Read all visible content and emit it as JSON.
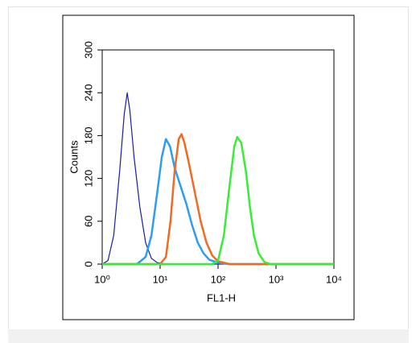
{
  "chart_data": {
    "type": "line",
    "xlabel": "FL1-H",
    "ylabel": "Counts",
    "xscale": "log",
    "xlim": [
      1,
      10000
    ],
    "xticks": [
      {
        "value": 1,
        "label": "10⁰"
      },
      {
        "value": 10,
        "label": "10¹"
      },
      {
        "value": 100,
        "label": "10²"
      },
      {
        "value": 1000,
        "label": "10³"
      },
      {
        "value": 10000,
        "label": "10⁴"
      }
    ],
    "ylim": [
      0,
      300
    ],
    "yticks": [
      0,
      60,
      120,
      180,
      240,
      300
    ],
    "series": [
      {
        "color": "#1c1c9e",
        "width": 1.2,
        "x": [
          1,
          1.26,
          1.58,
          2.0,
          2.4,
          2.7,
          3.0,
          3.55,
          4.47,
          5.62,
          7.08,
          8.91,
          12.6,
          10000
        ],
        "values": [
          0,
          5,
          40,
          130,
          210,
          240,
          215,
          150,
          80,
          30,
          8,
          2,
          0,
          0
        ]
      },
      {
        "color": "#2b9df2",
        "width": 2.5,
        "x": [
          1,
          3.98,
          5.62,
          7.08,
          8.91,
          10.7,
          12.6,
          14.8,
          17.8,
          22.4,
          28.2,
          35.5,
          44.7,
          56.2,
          70.8,
          100,
          158,
          10000
        ],
        "values": [
          0,
          0,
          10,
          40,
          100,
          150,
          175,
          165,
          135,
          110,
          85,
          55,
          30,
          15,
          6,
          2,
          0,
          0
        ]
      },
      {
        "color": "#f26a22",
        "width": 2.5,
        "x": [
          1,
          10,
          12.6,
          15.1,
          17.8,
          20.9,
          23.4,
          26.3,
          31.6,
          39.8,
          50.1,
          63.1,
          79.4,
          100,
          158,
          10000
        ],
        "values": [
          0,
          0,
          10,
          60,
          130,
          175,
          182,
          170,
          140,
          100,
          60,
          30,
          12,
          4,
          0,
          0
        ]
      },
      {
        "color": "#35ee35",
        "width": 2.5,
        "x": [
          1,
          79.4,
          100,
          126,
          158,
          191,
          214,
          251,
          302,
          355,
          417,
          501,
          631,
          794,
          10000
        ],
        "values": [
          0,
          0,
          5,
          40,
          110,
          165,
          178,
          170,
          130,
          80,
          40,
          15,
          3,
          0,
          0
        ]
      }
    ]
  }
}
